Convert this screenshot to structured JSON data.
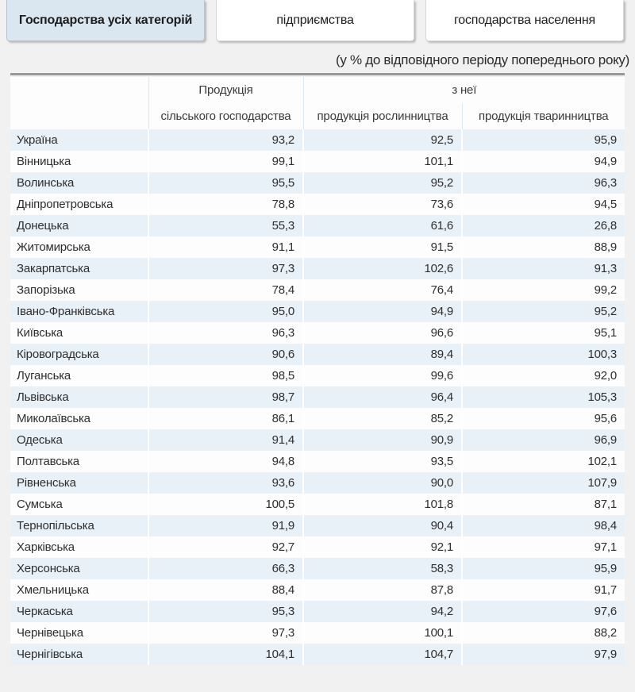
{
  "tabs": [
    {
      "label": "Господарства усіх категорій",
      "active": true
    },
    {
      "label": "підприємства",
      "active": false
    },
    {
      "label": "господарства населення",
      "active": false
    }
  ],
  "subtitle": "(у % до відповідного періоду попереднього року)",
  "table": {
    "header": {
      "main_line1": "Продукція",
      "main_line2": "сільського господарства",
      "group": "з неї",
      "sub": [
        "продукція рослинництва",
        "продукція тваринництва"
      ]
    },
    "rows": [
      {
        "region": "Україна",
        "values": [
          "93,2",
          "92,5",
          "95,9"
        ]
      },
      {
        "region": "Вінницька",
        "values": [
          "99,1",
          "101,1",
          "94,9"
        ]
      },
      {
        "region": "Волинська",
        "values": [
          "95,5",
          "95,2",
          "96,3"
        ]
      },
      {
        "region": "Дніпропетровська",
        "values": [
          "78,8",
          "73,6",
          "94,5"
        ]
      },
      {
        "region": "Донецька",
        "values": [
          "55,3",
          "61,6",
          "26,8"
        ]
      },
      {
        "region": "Житомирська",
        "values": [
          "91,1",
          "91,5",
          "88,9"
        ]
      },
      {
        "region": "Закарпатська",
        "values": [
          "97,3",
          "102,6",
          "91,3"
        ]
      },
      {
        "region": "Запорізька",
        "values": [
          "78,4",
          "76,4",
          "99,2"
        ]
      },
      {
        "region": "Івано-Франківська",
        "values": [
          "95,0",
          "94,9",
          "95,2"
        ]
      },
      {
        "region": "Київська",
        "values": [
          "96,3",
          "96,6",
          "95,1"
        ]
      },
      {
        "region": "Кіровоградська",
        "values": [
          "90,6",
          "89,4",
          "100,3"
        ]
      },
      {
        "region": "Луганська",
        "values": [
          "98,5",
          "99,6",
          "92,0"
        ]
      },
      {
        "region": "Львівська",
        "values": [
          "98,7",
          "96,4",
          "105,3"
        ]
      },
      {
        "region": "Миколаївська",
        "values": [
          "86,1",
          "85,2",
          "95,6"
        ]
      },
      {
        "region": "Одеська",
        "values": [
          "91,4",
          "90,9",
          "96,9"
        ]
      },
      {
        "region": "Полтавська",
        "values": [
          "94,8",
          "93,5",
          "102,1"
        ]
      },
      {
        "region": "Рівненська",
        "values": [
          "93,6",
          "90,0",
          "107,9"
        ]
      },
      {
        "region": "Сумська",
        "values": [
          "100,5",
          "101,8",
          "87,1"
        ]
      },
      {
        "region": "Тернопільська",
        "values": [
          "91,9",
          "90,4",
          "98,4"
        ]
      },
      {
        "region": "Харківська",
        "values": [
          "92,7",
          "92,1",
          "97,1"
        ]
      },
      {
        "region": "Херсонська",
        "values": [
          "66,3",
          "58,3",
          "95,9"
        ]
      },
      {
        "region": "Хмельницька",
        "values": [
          "88,4",
          "87,8",
          "91,7"
        ]
      },
      {
        "region": "Черкаська",
        "values": [
          "95,3",
          "94,2",
          "97,6"
        ]
      },
      {
        "region": "Чернівецька",
        "values": [
          "97,3",
          "100,1",
          "88,2"
        ]
      },
      {
        "region": "Чернігівська",
        "values": [
          "104,1",
          "104,7",
          "97,9"
        ]
      }
    ]
  },
  "colors": {
    "page_background": "#f1f1f2",
    "active_tab_background": "#dbe7f0",
    "row_stripe": "#e9f1f8",
    "header_separator": "#d9e7f0",
    "top_rule": "#989898",
    "text": "#2e2e2e"
  }
}
